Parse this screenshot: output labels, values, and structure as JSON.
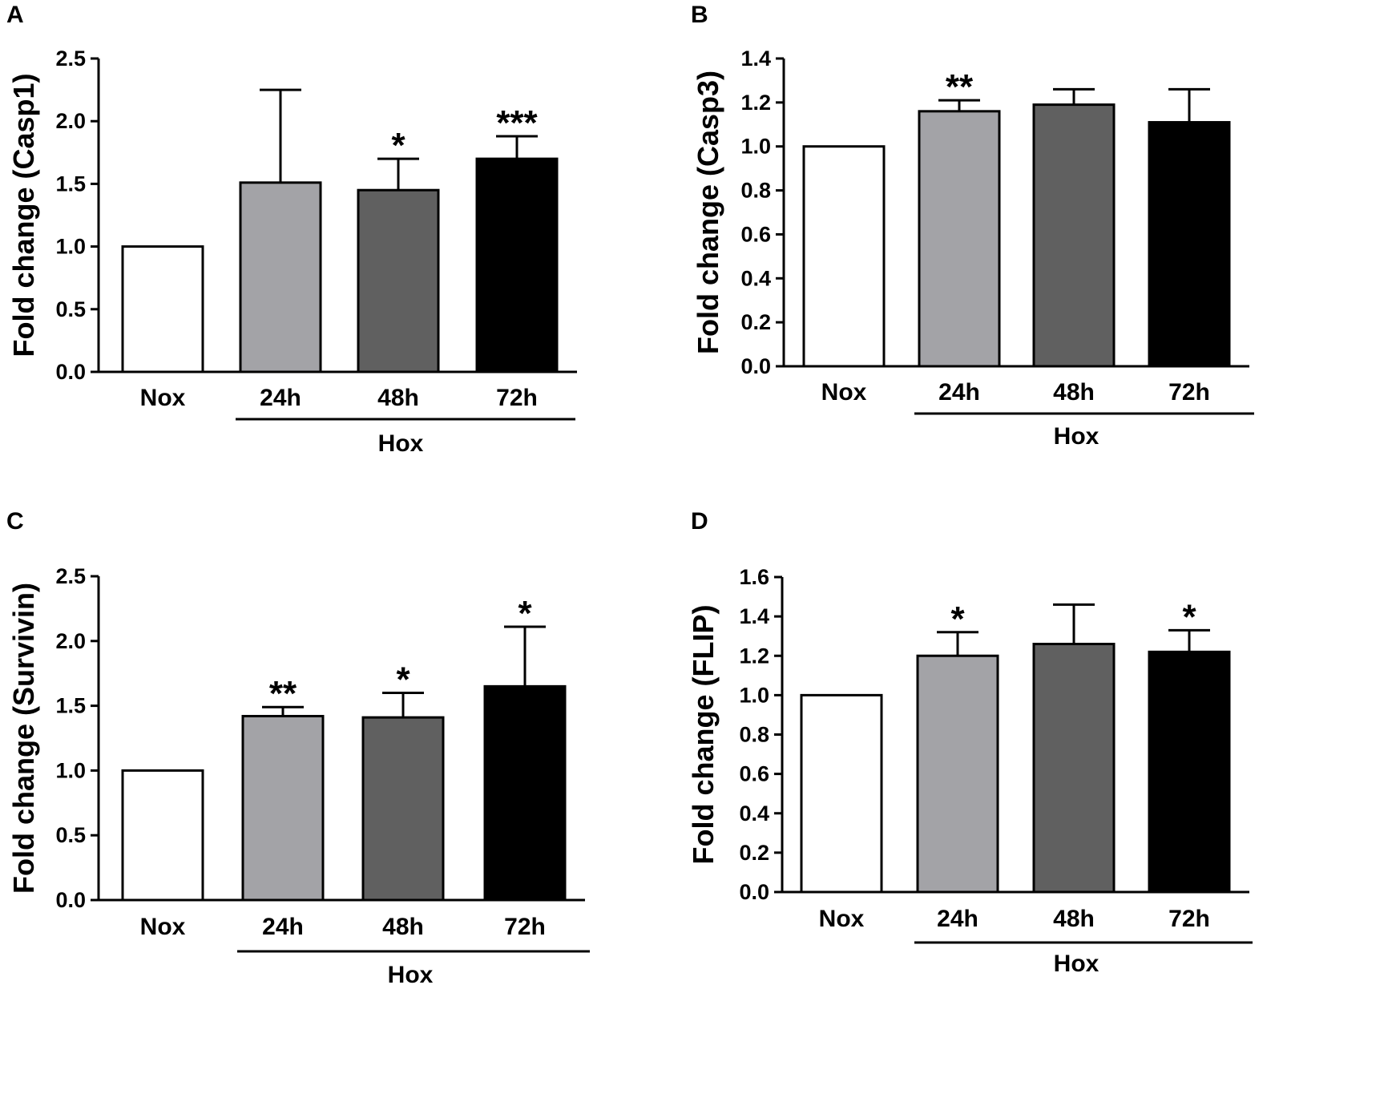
{
  "chart_data": [
    {
      "type": "bar",
      "panel": "A",
      "ylabel": "Fold change (Casp1)",
      "ylim": [
        0,
        2.5
      ],
      "yticks": [
        "0.0",
        "0.5",
        "1.0",
        "1.5",
        "2.0",
        "2.5"
      ],
      "categories": [
        "Nox",
        "24h",
        "48h",
        "72h"
      ],
      "values": [
        1.0,
        1.51,
        1.45,
        1.7
      ],
      "error": [
        0,
        0.74,
        0.25,
        0.18
      ],
      "significance": [
        "",
        "",
        "*",
        "***"
      ],
      "colors": [
        "#ffffff",
        "#a3a3a7",
        "#606060",
        "#000000"
      ],
      "group_label": "Hox"
    },
    {
      "type": "bar",
      "panel": "B",
      "ylabel": "Fold change (Casp3)",
      "ylim": [
        0,
        1.4
      ],
      "yticks": [
        "0.0",
        "0.2",
        "0.4",
        "0.6",
        "0.8",
        "1.0",
        "1.2",
        "1.4"
      ],
      "categories": [
        "Nox",
        "24h",
        "48h",
        "72h"
      ],
      "values": [
        1.0,
        1.16,
        1.19,
        1.11
      ],
      "error": [
        0,
        0.05,
        0.07,
        0.15
      ],
      "significance": [
        "",
        "**",
        "",
        ""
      ],
      "colors": [
        "#ffffff",
        "#a3a3a7",
        "#606060",
        "#000000"
      ],
      "group_label": "Hox"
    },
    {
      "type": "bar",
      "panel": "C",
      "ylabel": "Fold change (Survivin)",
      "ylim": [
        0,
        2.5
      ],
      "yticks": [
        "0.0",
        "0.5",
        "1.0",
        "1.5",
        "2.0",
        "2.5"
      ],
      "categories": [
        "Nox",
        "24h",
        "48h",
        "72h"
      ],
      "values": [
        1.0,
        1.42,
        1.41,
        1.65
      ],
      "error": [
        0,
        0.07,
        0.19,
        0.46
      ],
      "significance": [
        "",
        "**",
        "*",
        "*"
      ],
      "colors": [
        "#ffffff",
        "#a3a3a7",
        "#606060",
        "#000000"
      ],
      "group_label": "Hox"
    },
    {
      "type": "bar",
      "panel": "D",
      "ylabel": "Fold change (FLIP)",
      "ylim": [
        0,
        1.6
      ],
      "yticks": [
        "0.0",
        "0.2",
        "0.4",
        "0.6",
        "0.8",
        "1.0",
        "1.2",
        "1.4",
        "1.6"
      ],
      "categories": [
        "Nox",
        "24h",
        "48h",
        "72h"
      ],
      "values": [
        1.0,
        1.2,
        1.26,
        1.22
      ],
      "error": [
        0,
        0.12,
        0.2,
        0.11
      ],
      "significance": [
        "",
        "*",
        "",
        "*"
      ],
      "colors": [
        "#ffffff",
        "#a3a3a7",
        "#606060",
        "#000000"
      ],
      "group_label": "Hox"
    }
  ]
}
